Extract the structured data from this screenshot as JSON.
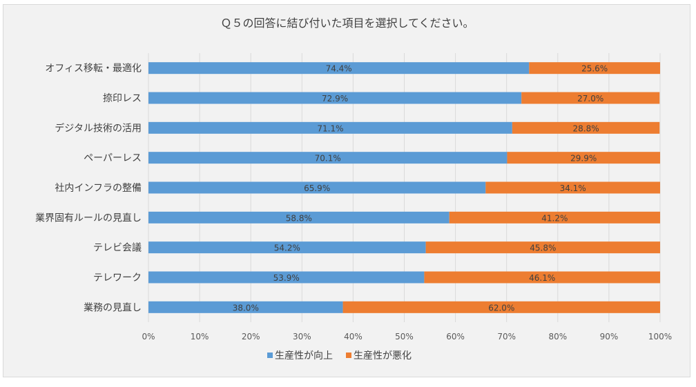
{
  "chart_data": {
    "type": "bar",
    "orientation": "horizontal",
    "stacked": "percent",
    "title": "Ｑ５の回答に結び付いた項目を選択してください。",
    "categories": [
      "オフィス移転・最適化",
      "捺印レス",
      "デジタル技術の活用",
      "ペーパーレス",
      "社内インフラの整備",
      "業界固有ルールの見直し",
      "テレビ会議",
      "テレワーク",
      "業務の見直し"
    ],
    "series": [
      {
        "name": "生産性が向上",
        "color": "#5b9bd5",
        "values": [
          74.4,
          72.9,
          71.1,
          70.1,
          65.9,
          58.8,
          54.2,
          53.9,
          38.0
        ],
        "labels": [
          "74.4%",
          "72.9%",
          "71.1%",
          "70.1%",
          "65.9%",
          "58.8%",
          "54.2%",
          "53.9%",
          "38.0%"
        ]
      },
      {
        "name": "生産性が悪化",
        "color": "#ed7d31",
        "values": [
          25.6,
          27.0,
          28.8,
          29.9,
          34.1,
          41.2,
          45.8,
          46.1,
          62.0
        ],
        "labels": [
          "25.6%",
          "27.0%",
          "28.8%",
          "29.9%",
          "34.1%",
          "41.2%",
          "45.8%",
          "46.1%",
          "62.0%"
        ]
      }
    ],
    "xlim": [
      0,
      100
    ],
    "xticks": [
      "0%",
      "10%",
      "20%",
      "30%",
      "40%",
      "50%",
      "60%",
      "70%",
      "80%",
      "90%",
      "100%"
    ],
    "grid": true,
    "legend": "bottom"
  }
}
